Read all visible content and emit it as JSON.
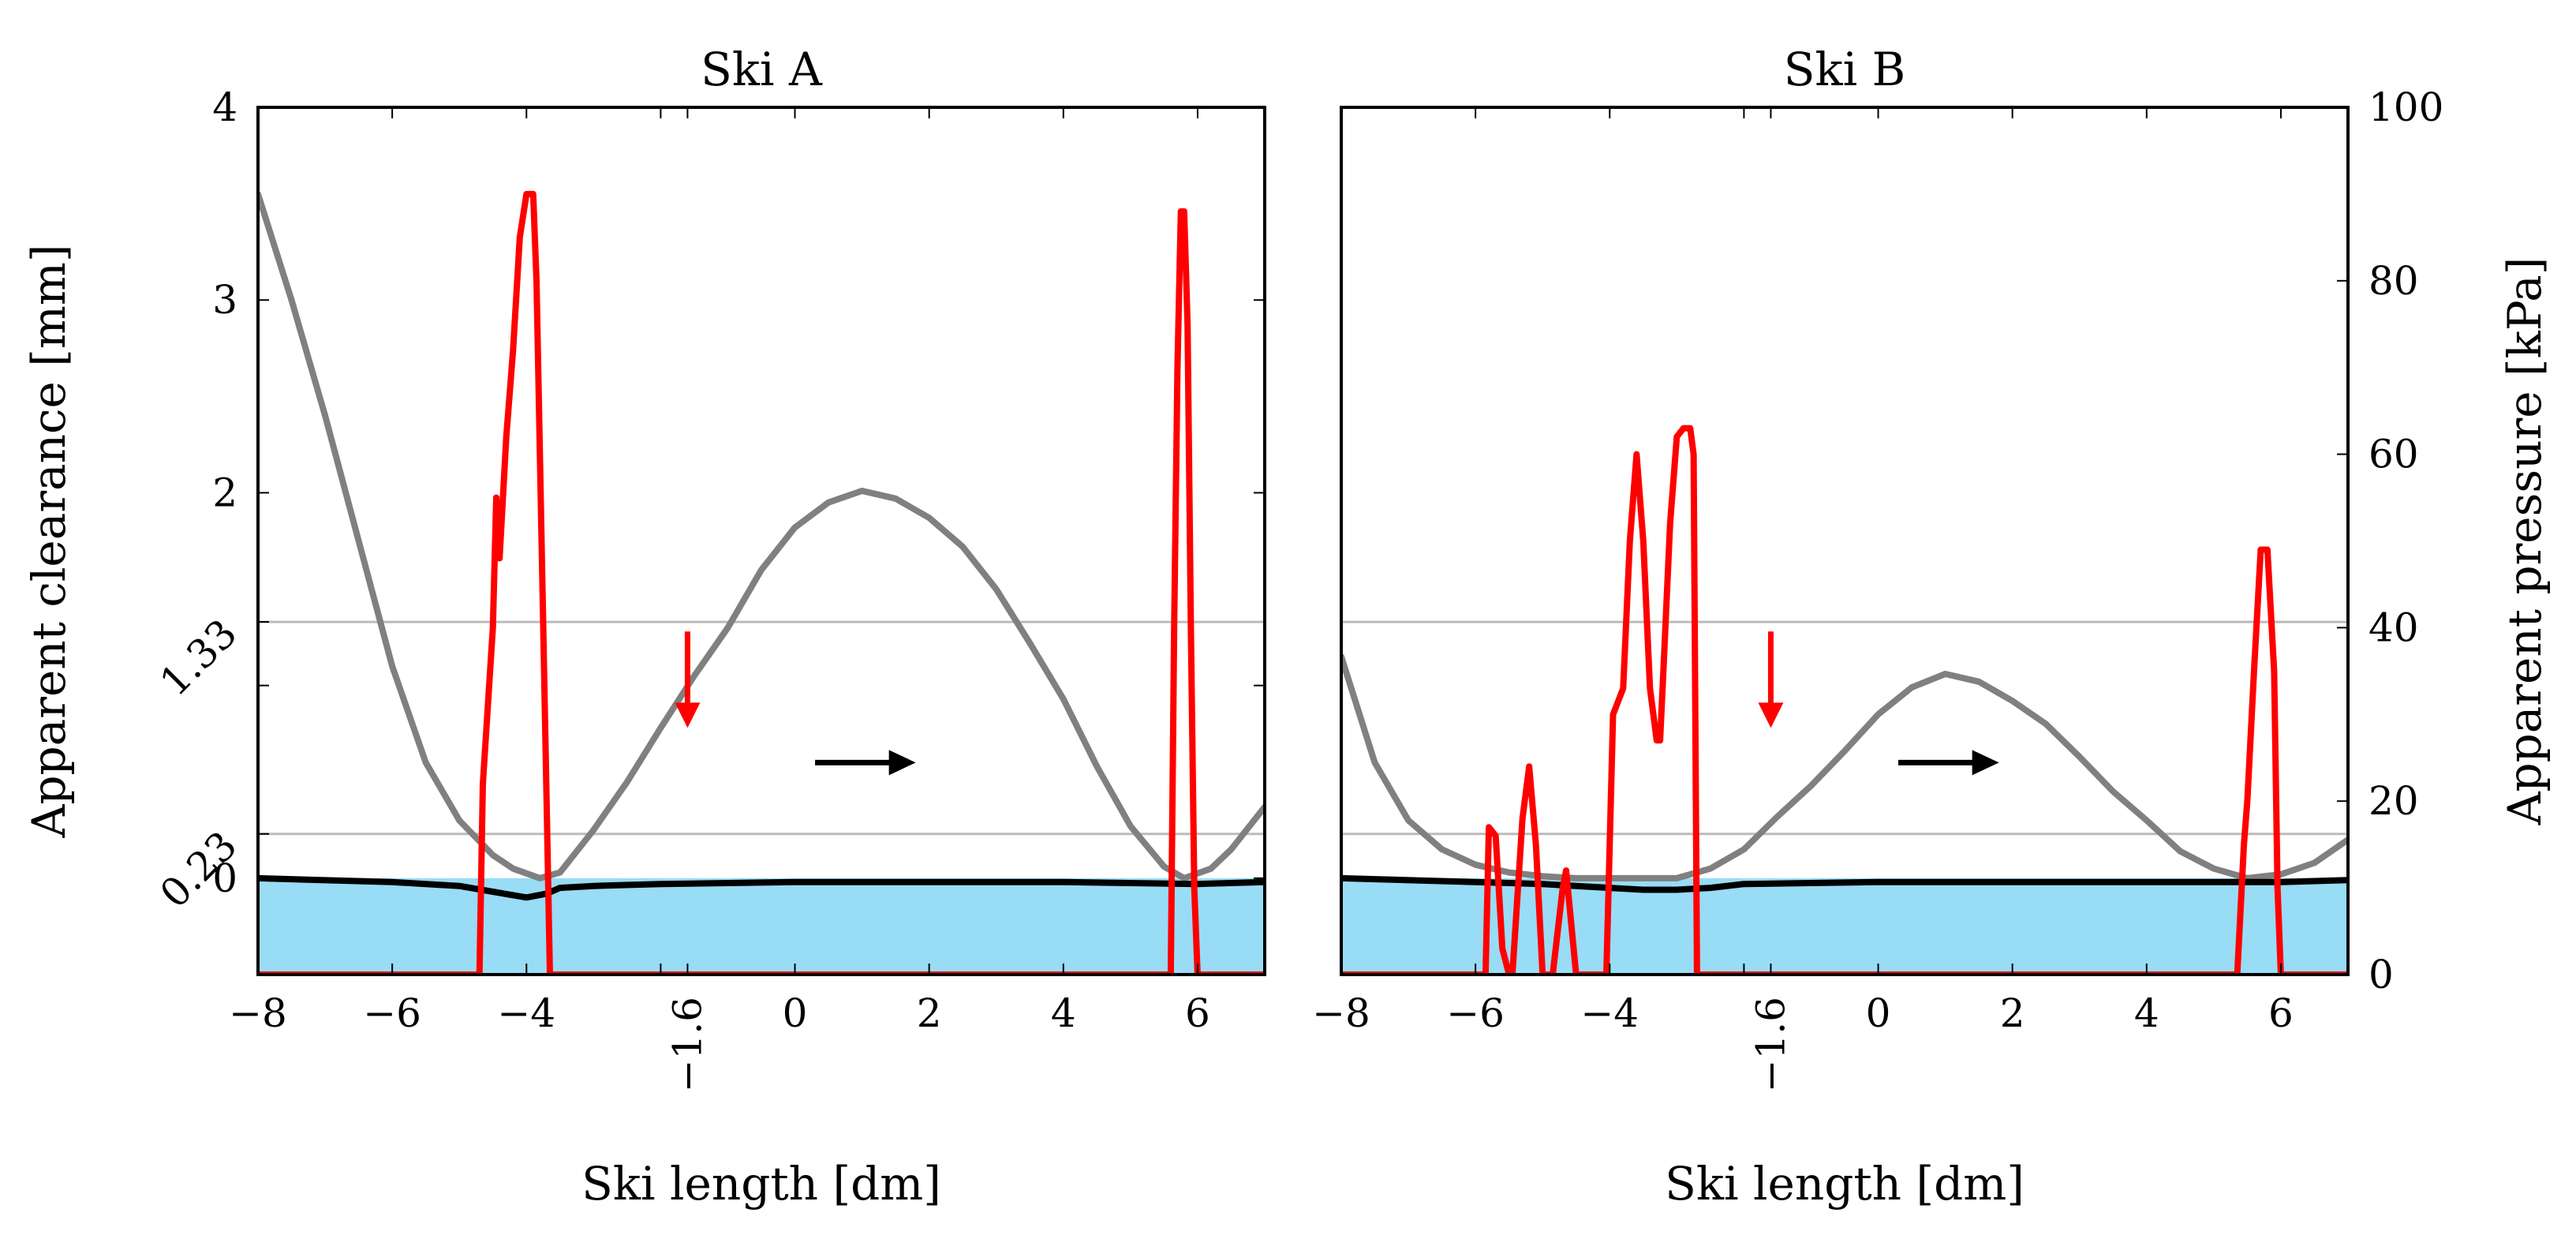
{
  "chart_data": [
    {
      "type": "line",
      "title": "Ski A",
      "xlabel": "Ski length [dm]",
      "ylabel": "Apparent clearance [mm]",
      "xlim": [
        -8,
        7
      ],
      "ylim": [
        -0.5,
        4
      ],
      "xticks": [
        -8,
        -6,
        -4,
        -2,
        0,
        2,
        4,
        6
      ],
      "xtick_labels": [
        "−8",
        "−6",
        "−4",
        "",
        "0",
        "2",
        "4",
        "6"
      ],
      "extra_xtick": {
        "value": -1.6,
        "label": "−1.6"
      },
      "yticks": [
        0,
        1,
        2,
        3,
        4
      ],
      "ytick_labels": [
        "0",
        "",
        "2",
        "3",
        "4"
      ],
      "extra_yticks": [
        {
          "value": 1.33,
          "label": "1.33"
        },
        {
          "value": 0.23,
          "label": "0.23"
        }
      ],
      "hlines": [
        1.33,
        0.23
      ],
      "colors": {
        "clearance": "#808080",
        "pressure": "#ff0000",
        "base": "#000000",
        "fill": "#99dcf5",
        "grid": "#bbbbbb"
      },
      "series": [
        {
          "name": "clearance",
          "axis": "left",
          "x": [
            -8,
            -7.5,
            -7,
            -6.5,
            -6,
            -5.5,
            -5,
            -4.5,
            -4.2,
            -3.8,
            -3.5,
            -3,
            -2.5,
            -2,
            -1.5,
            -1,
            -0.5,
            0,
            0.5,
            1,
            1.5,
            2,
            2.5,
            3,
            3.5,
            4,
            4.5,
            5,
            5.5,
            5.8,
            6.2,
            6.5,
            7
          ],
          "y": [
            3.55,
            3.0,
            2.4,
            1.75,
            1.1,
            0.6,
            0.3,
            0.12,
            0.05,
            0.0,
            0.03,
            0.25,
            0.5,
            0.78,
            1.05,
            1.3,
            1.6,
            1.82,
            1.95,
            2.01,
            1.97,
            1.87,
            1.72,
            1.5,
            1.22,
            0.93,
            0.58,
            0.27,
            0.06,
            0.0,
            0.05,
            0.15,
            0.37
          ]
        },
        {
          "name": "base",
          "axis": "left",
          "x": [
            -8,
            -6,
            -5,
            -4.5,
            -4,
            -3.7,
            -3.5,
            -3,
            -2,
            0,
            2,
            4,
            6,
            7
          ],
          "y": [
            0.0,
            -0.02,
            -0.04,
            -0.07,
            -0.1,
            -0.08,
            -0.05,
            -0.04,
            -0.03,
            -0.02,
            -0.02,
            -0.02,
            -0.03,
            -0.02
          ]
        },
        {
          "name": "pressure",
          "axis": "right",
          "x": [
            -8,
            -4.7,
            -4.65,
            -4.5,
            -4.45,
            -4.4,
            -4.3,
            -4.2,
            -4.1,
            -4.0,
            -3.9,
            -3.85,
            -3.8,
            -3.7,
            -3.65,
            -3.6,
            5.6,
            5.65,
            5.7,
            5.75,
            5.8,
            5.85,
            5.9,
            5.95,
            6.0,
            7
          ],
          "y": [
            0,
            0,
            22,
            40,
            55,
            48,
            62,
            72,
            85,
            90,
            90,
            80,
            60,
            20,
            0,
            0,
            0,
            40,
            70,
            88,
            88,
            75,
            40,
            10,
            0,
            0
          ]
        }
      ],
      "annotations": [
        {
          "type": "arrow-down",
          "x": -1.6,
          "y_from": 1.28,
          "y_to": 0.78,
          "color": "#ff0000"
        },
        {
          "type": "arrow-right",
          "x_from": 0.3,
          "x_to": 1.8,
          "y": 0.6,
          "color": "#000000"
        }
      ]
    },
    {
      "type": "line",
      "title": "Ski B",
      "xlabel": "Ski length [dm]",
      "ylabel": "Apparent pressure [kPa]",
      "xlim": [
        -8,
        7
      ],
      "ylim": [
        0,
        100
      ],
      "xticks": [
        -8,
        -6,
        -4,
        -2,
        0,
        2,
        4,
        6
      ],
      "xtick_labels": [
        "−8",
        "−6",
        "−4",
        "",
        "0",
        "2",
        "4",
        "6"
      ],
      "extra_xtick": {
        "value": -1.6,
        "label": "−1.6"
      },
      "yticks": [
        0,
        20,
        40,
        60,
        80,
        100
      ],
      "ytick_labels": [
        "0",
        "20",
        "40",
        "60",
        "80",
        "100"
      ],
      "hlines": [
        1.33,
        0.23
      ],
      "clearance_ylim": [
        -0.5,
        4
      ],
      "colors": {
        "clearance": "#808080",
        "pressure": "#ff0000",
        "base": "#000000",
        "fill": "#99dcf5",
        "grid": "#bbbbbb"
      },
      "series": [
        {
          "name": "clearance",
          "axis": "left",
          "x": [
            -8,
            -7.5,
            -7,
            -6.5,
            -6,
            -5.5,
            -5,
            -4.5,
            -4,
            -3.5,
            -3,
            -2.5,
            -2,
            -1.5,
            -1,
            -0.5,
            0,
            0.5,
            1,
            1.5,
            2,
            2.5,
            3,
            3.5,
            4,
            4.5,
            5,
            5.5,
            6,
            6.5,
            7
          ],
          "y": [
            1.15,
            0.6,
            0.3,
            0.15,
            0.07,
            0.03,
            0.01,
            0.0,
            0.0,
            0.0,
            0.0,
            0.05,
            0.15,
            0.32,
            0.48,
            0.66,
            0.85,
            0.99,
            1.06,
            1.02,
            0.92,
            0.8,
            0.63,
            0.45,
            0.3,
            0.14,
            0.05,
            0.0,
            0.02,
            0.08,
            0.2
          ]
        },
        {
          "name": "base",
          "axis": "left",
          "x": [
            -8,
            -6,
            -5,
            -4.5,
            -4,
            -3.5,
            -3,
            -2.5,
            -2,
            0,
            2,
            4,
            6,
            7
          ],
          "y": [
            0.0,
            -0.02,
            -0.03,
            -0.04,
            -0.05,
            -0.06,
            -0.06,
            -0.05,
            -0.03,
            -0.02,
            -0.02,
            -0.02,
            -0.02,
            -0.01
          ]
        },
        {
          "name": "pressure",
          "axis": "right",
          "x": [
            -8,
            -5.85,
            -5.8,
            -5.7,
            -5.6,
            -5.5,
            -5.45,
            -5.3,
            -5.2,
            -5.1,
            -5.0,
            -4.9,
            -4.85,
            -4.7,
            -4.65,
            -4.5,
            -4.4,
            -4.3,
            -4.2,
            -4.05,
            -3.95,
            -3.9,
            -3.8,
            -3.7,
            -3.6,
            -3.5,
            -3.4,
            -3.3,
            -3.25,
            -3.2,
            -3.1,
            -3.0,
            -2.9,
            -2.8,
            -2.75,
            -2.7,
            -2.6,
            -2.5,
            -2.4,
            5.35,
            5.45,
            5.5,
            5.6,
            5.7,
            5.8,
            5.9,
            5.95,
            6.0,
            7
          ],
          "y": [
            0,
            0,
            17,
            16,
            3,
            0,
            0,
            18,
            24,
            15,
            0,
            0,
            0,
            10,
            12,
            0,
            0,
            0,
            0,
            0,
            30,
            31,
            33,
            50,
            60,
            50,
            33,
            27,
            27,
            35,
            52,
            62,
            63,
            63,
            60,
            0,
            0,
            0,
            0,
            0,
            15,
            20,
            35,
            49,
            49,
            35,
            10,
            0,
            0
          ]
        }
      ],
      "annotations": [
        {
          "type": "arrow-down",
          "x": -1.6,
          "y_from": 1.28,
          "y_to": 0.78,
          "color": "#ff0000"
        },
        {
          "type": "arrow-right",
          "x_from": 0.3,
          "x_to": 1.8,
          "y": 0.6,
          "color": "#000000"
        }
      ]
    }
  ]
}
